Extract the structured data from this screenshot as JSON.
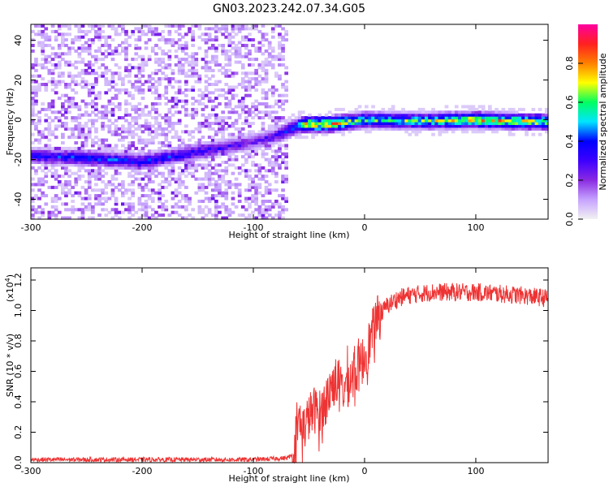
{
  "chart_data": [
    {
      "type": "heatmap",
      "title": "GN03.2023.242.07.34.G05",
      "xlabel": "Height of straight line (km)",
      "ylabel": "Frequency (Hz)",
      "xlim": [
        -300,
        165
      ],
      "ylim": [
        -50,
        48
      ],
      "xticks": [
        -300,
        -200,
        -100,
        0,
        100
      ],
      "xtick_labels": [
        "-300",
        "-200",
        "-100",
        "0",
        "100"
      ],
      "yticks": [
        -40,
        -20,
        0,
        20,
        40
      ],
      "ytick_labels": [
        "-40",
        "-20",
        "0",
        "20",
        "40"
      ],
      "grid": false,
      "colormap": [
        "#f2f2f2",
        "#c6a3ff",
        "#8a2be2",
        "#3d00ff",
        "#0000ff",
        "#00e5ff",
        "#00ff60",
        "#ffff00",
        "#ff8000",
        "#ff2020",
        "#ff00a0"
      ],
      "colorbar": {
        "label": "Normalized spectral amplitude",
        "range": [
          0,
          1
        ],
        "ticks": [
          0.0,
          0.2,
          0.4,
          0.6,
          0.8
        ],
        "tick_labels": [
          "0.0",
          "0.2",
          "0.4",
          "0.6",
          "0.8"
        ]
      },
      "noise_region_x": [
        -300,
        -68
      ],
      "signal_track": {
        "x": [
          -300,
          -250,
          -200,
          -150,
          -100,
          -80,
          -60,
          -50,
          -30,
          0,
          50,
          100,
          165
        ],
        "frequency_hz": [
          -18,
          -19,
          -21,
          -16,
          -11,
          -8,
          -3,
          -2,
          -2,
          0,
          -0.5,
          0,
          -1
        ],
        "amplitude": [
          0.35,
          0.4,
          0.4,
          0.35,
          0.25,
          0.3,
          0.5,
          0.8,
          0.75,
          0.55,
          0.6,
          0.75,
          0.65
        ]
      }
    },
    {
      "type": "line",
      "xlabel": "Height of straight line (km)",
      "ylabel": "SNR (10 * v/v)",
      "y_multiplier": "(x10⁴)",
      "y_multiplier_base": "(x10",
      "y_multiplier_exp": "4",
      "y_multiplier_close": ")",
      "xlim": [
        -300,
        165
      ],
      "ylim": [
        0,
        1.28
      ],
      "xticks": [
        -300,
        -200,
        -100,
        0,
        100
      ],
      "xtick_labels": [
        "-300",
        "-200",
        "-100",
        "0",
        "100"
      ],
      "yticks": [
        0.0,
        0.2,
        0.4,
        0.6,
        0.8,
        1.0,
        1.2
      ],
      "ytick_labels": [
        "0.0",
        "0.2",
        "0.4",
        "0.6",
        "0.8",
        "1.0",
        "1.2"
      ],
      "grid": false,
      "color": "#ee3333",
      "series": [
        {
          "x": [
            -300,
            -250,
            -200,
            -150,
            -100,
            -70,
            -62,
            -60,
            -55,
            -50,
            -45,
            -40,
            -35,
            -30,
            -25,
            -20,
            -15,
            -10,
            -5,
            0,
            5,
            10,
            15,
            20,
            30,
            40,
            60,
            80,
            100,
            120,
            140,
            165
          ],
          "values": [
            0.02,
            0.02,
            0.02,
            0.02,
            0.02,
            0.03,
            0.06,
            0.28,
            0.22,
            0.3,
            0.35,
            0.32,
            0.4,
            0.5,
            0.55,
            0.48,
            0.52,
            0.58,
            0.62,
            0.7,
            0.8,
            0.92,
            0.98,
            1.03,
            1.08,
            1.1,
            1.12,
            1.12,
            1.12,
            1.11,
            1.1,
            1.08
          ]
        }
      ]
    }
  ]
}
